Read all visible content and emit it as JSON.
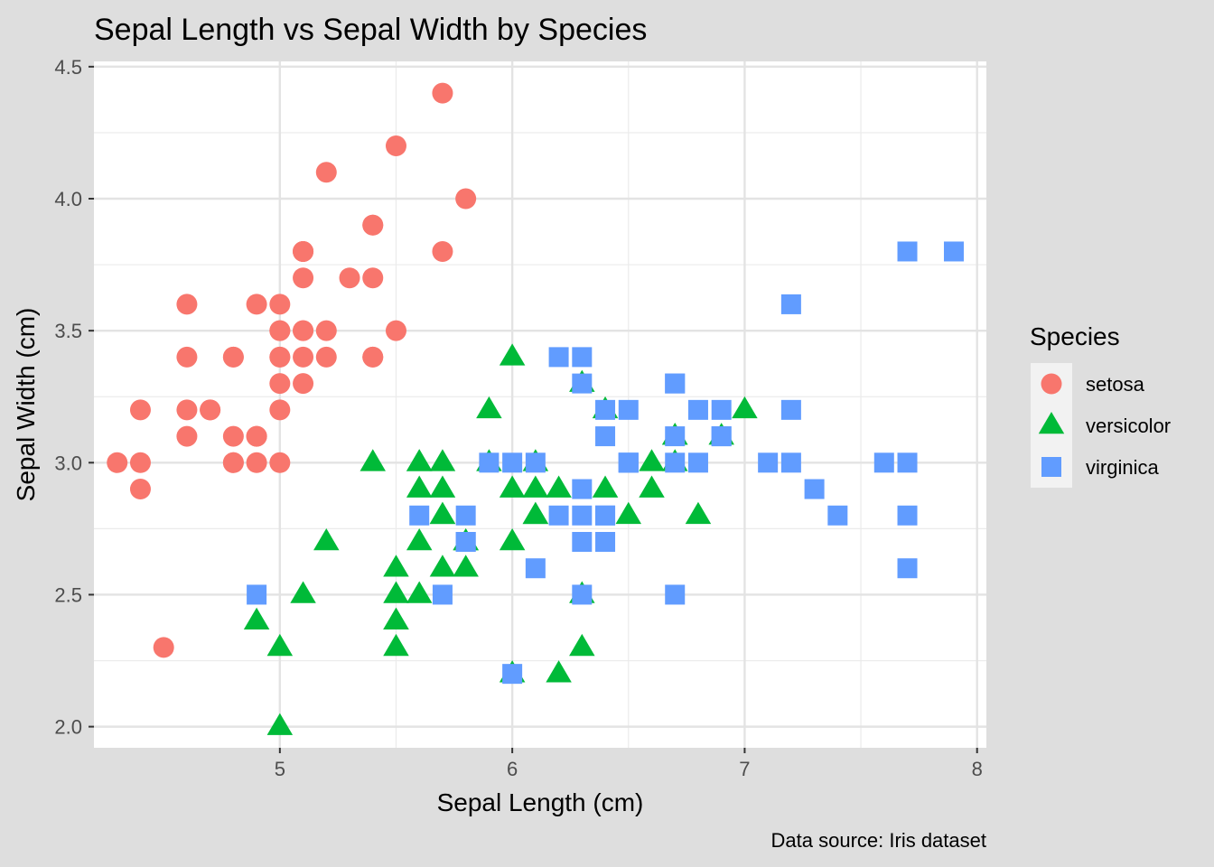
{
  "chart_data": {
    "type": "scatter",
    "title": "Sepal Length vs Sepal Width by Species",
    "xlabel": "Sepal Length (cm)",
    "ylabel": "Sepal Width (cm)",
    "caption": "Data source: Iris dataset",
    "xlim": [
      4.2,
      8.04
    ],
    "ylim": [
      1.92,
      4.52
    ],
    "xticks": [
      5,
      6,
      7,
      8
    ],
    "xtick_labels": [
      "5",
      "6",
      "7",
      "8"
    ],
    "yticks": [
      2.0,
      2.5,
      3.0,
      3.5,
      4.0,
      4.5
    ],
    "ytick_labels": [
      "2.0",
      "2.5",
      "3.0",
      "3.5",
      "4.0",
      "4.5"
    ],
    "grid": true,
    "legend": {
      "title": "Species",
      "position": "right"
    },
    "series": [
      {
        "name": "setosa",
        "marker": "circle",
        "color": "#F8766D",
        "x": [
          5.1,
          4.9,
          4.7,
          4.6,
          5.0,
          5.4,
          4.6,
          5.0,
          4.4,
          4.9,
          5.4,
          4.8,
          4.8,
          4.3,
          5.8,
          5.7,
          5.4,
          5.1,
          5.7,
          5.1,
          5.4,
          5.1,
          4.6,
          5.1,
          4.8,
          5.0,
          5.0,
          5.2,
          5.2,
          4.7,
          4.8,
          5.4,
          5.2,
          5.5,
          4.9,
          5.0,
          5.5,
          4.9,
          4.4,
          5.1,
          5.0,
          4.5,
          4.4,
          5.0,
          5.1,
          4.8,
          5.1,
          4.6,
          5.3,
          5.0
        ],
        "y": [
          3.5,
          3.0,
          3.2,
          3.1,
          3.6,
          3.9,
          3.4,
          3.4,
          2.9,
          3.1,
          3.7,
          3.4,
          3.0,
          3.0,
          4.0,
          4.4,
          3.9,
          3.5,
          3.8,
          3.8,
          3.4,
          3.7,
          3.6,
          3.3,
          3.4,
          3.0,
          3.4,
          3.5,
          3.4,
          3.2,
          3.1,
          3.4,
          4.1,
          4.2,
          3.1,
          3.2,
          3.5,
          3.6,
          3.0,
          3.4,
          3.5,
          2.3,
          3.2,
          3.5,
          3.8,
          3.0,
          3.8,
          3.2,
          3.7,
          3.3
        ]
      },
      {
        "name": "versicolor",
        "marker": "triangle",
        "color": "#00BA38",
        "x": [
          7.0,
          6.4,
          6.9,
          5.5,
          6.5,
          5.7,
          6.3,
          4.9,
          6.6,
          5.2,
          5.0,
          5.9,
          6.0,
          6.1,
          5.6,
          6.7,
          5.6,
          5.8,
          6.2,
          5.6,
          5.9,
          6.1,
          6.3,
          6.1,
          6.4,
          6.6,
          6.8,
          6.7,
          6.0,
          5.7,
          5.5,
          5.5,
          5.8,
          6.0,
          5.4,
          6.0,
          6.7,
          6.3,
          5.6,
          5.5,
          5.5,
          6.1,
          5.8,
          5.0,
          5.6,
          5.7,
          5.7,
          6.2,
          5.1,
          5.7
        ],
        "y": [
          3.2,
          3.2,
          3.1,
          2.3,
          2.8,
          2.8,
          3.3,
          2.4,
          2.9,
          2.7,
          2.0,
          3.0,
          2.2,
          2.9,
          2.9,
          3.1,
          3.0,
          2.7,
          2.2,
          2.5,
          3.2,
          2.8,
          2.5,
          2.8,
          2.9,
          3.0,
          2.8,
          3.0,
          2.9,
          2.6,
          2.4,
          2.4,
          2.7,
          2.7,
          3.0,
          3.4,
          3.1,
          2.3,
          3.0,
          2.5,
          2.6,
          3.0,
          2.6,
          2.3,
          2.7,
          3.0,
          2.9,
          2.9,
          2.5,
          2.8
        ]
      },
      {
        "name": "virginica",
        "marker": "square",
        "color": "#619CFF",
        "x": [
          6.3,
          5.8,
          7.1,
          6.3,
          6.5,
          7.6,
          4.9,
          7.3,
          6.7,
          7.2,
          6.5,
          6.4,
          6.8,
          5.7,
          5.8,
          6.4,
          6.5,
          7.7,
          7.7,
          6.0,
          6.9,
          5.6,
          7.7,
          6.3,
          6.7,
          7.2,
          6.2,
          6.1,
          6.4,
          7.2,
          7.4,
          7.9,
          6.4,
          6.3,
          6.1,
          7.7,
          6.3,
          6.4,
          6.0,
          6.9,
          6.7,
          6.9,
          5.8,
          6.8,
          6.7,
          6.7,
          6.3,
          6.5,
          6.2,
          5.9
        ],
        "y": [
          3.3,
          2.7,
          3.0,
          2.9,
          3.0,
          3.0,
          2.5,
          2.9,
          2.5,
          3.6,
          3.2,
          2.7,
          3.0,
          2.5,
          2.8,
          3.2,
          3.0,
          3.8,
          2.6,
          2.2,
          3.2,
          2.8,
          2.8,
          2.7,
          3.3,
          3.2,
          2.8,
          3.0,
          2.8,
          3.0,
          2.8,
          3.8,
          2.8,
          2.8,
          2.6,
          3.0,
          3.4,
          3.1,
          3.0,
          3.1,
          3.1,
          3.1,
          2.7,
          3.2,
          3.3,
          3.0,
          2.5,
          3.0,
          3.4,
          3.0
        ]
      }
    ]
  }
}
